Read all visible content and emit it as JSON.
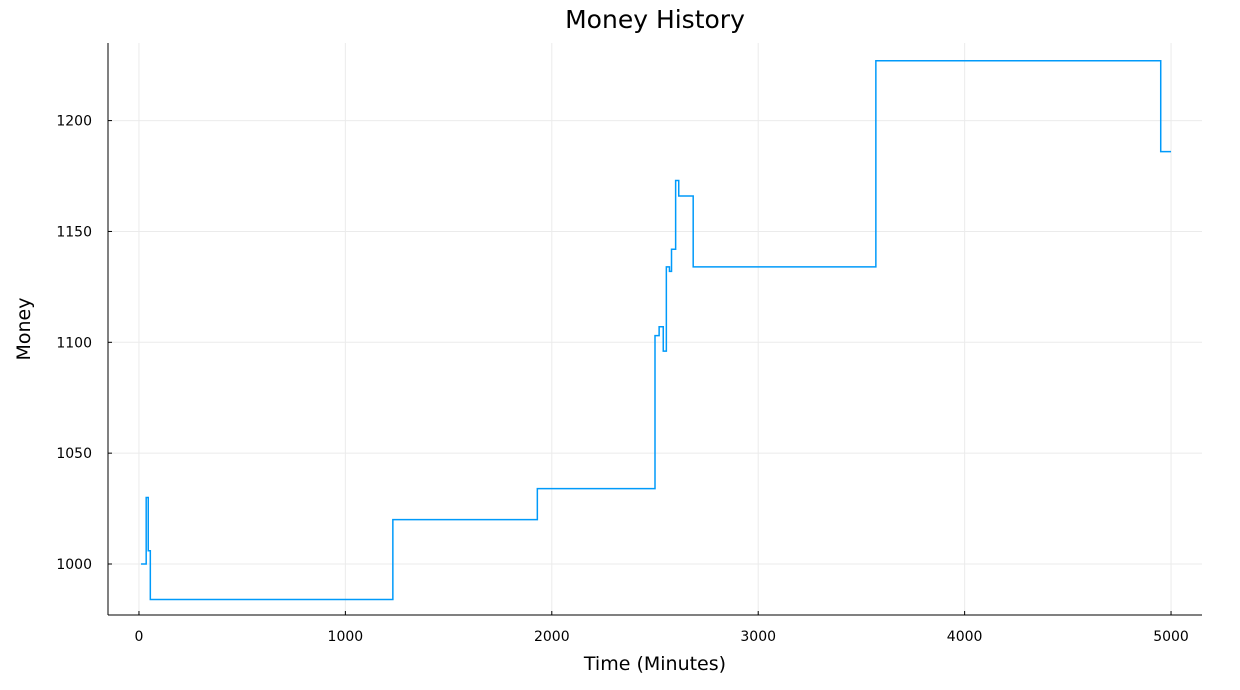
{
  "chart_data": {
    "type": "line",
    "title": "Money History",
    "xlabel": "Time (Minutes)",
    "ylabel": "Money",
    "xlim": [
      -150,
      5150
    ],
    "ylim": [
      977,
      1235
    ],
    "xticks": [
      0,
      1000,
      2000,
      3000,
      4000,
      5000
    ],
    "yticks": [
      1000,
      1050,
      1100,
      1150,
      1200
    ],
    "grid": true,
    "legend": "none",
    "line_color": "#009AFA",
    "series": [
      {
        "step": true,
        "x": [
          10,
          35,
          45,
          55,
          1230,
          1930,
          2500,
          2520,
          2540,
          2555,
          2570,
          2580,
          2600,
          2615,
          2625,
          2685,
          3570,
          4950,
          5000
        ],
        "y": [
          1000,
          1030,
          1006,
          984,
          1020,
          1034,
          1103,
          1107,
          1096,
          1134,
          1132,
          1142,
          1173,
          1166,
          1166,
          1134,
          1227,
          1186,
          1186
        ]
      }
    ]
  }
}
